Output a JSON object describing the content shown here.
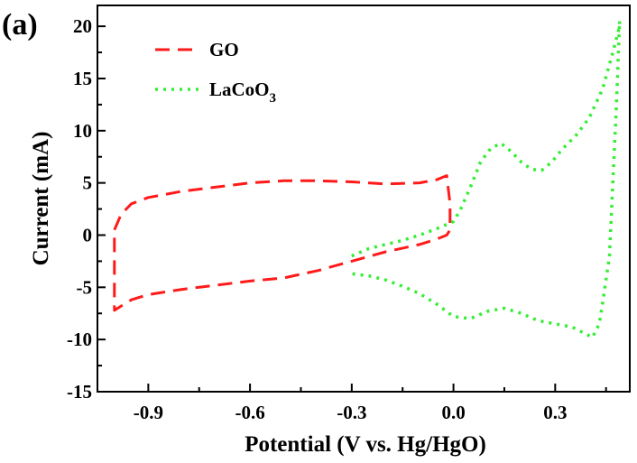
{
  "panel_label": "(a)",
  "chart_data": {
    "type": "line",
    "title": "",
    "xlabel": "Potential (V vs. Hg/HgO)",
    "ylabel": "Current (mA)",
    "xlim": [
      -1.05,
      0.52
    ],
    "ylim": [
      -15,
      22
    ],
    "xticks": [
      -0.9,
      -0.6,
      -0.3,
      0.0,
      0.3
    ],
    "xtick_labels": [
      "-0.9",
      "-0.6",
      "-0.3",
      "0.0",
      "0.3"
    ],
    "yticks": [
      -15,
      -10,
      -5,
      0,
      5,
      10,
      15,
      20
    ],
    "ytick_labels": [
      "-15",
      "-10",
      "-5",
      "0",
      "5",
      "10",
      "15",
      "20"
    ],
    "grid": false,
    "legend_position": "top-left",
    "series": [
      {
        "name": "GO",
        "name_base": "GO",
        "name_sub": "",
        "color": "#ff1a1a",
        "style": "dashed",
        "x": [
          -1.0,
          -0.98,
          -0.95,
          -0.9,
          -0.85,
          -0.8,
          -0.7,
          -0.6,
          -0.5,
          -0.4,
          -0.3,
          -0.2,
          -0.1,
          -0.05,
          -0.02,
          -0.01,
          -0.01,
          -0.02,
          -0.05,
          -0.1,
          -0.2,
          -0.3,
          -0.4,
          -0.5,
          -0.6,
          -0.7,
          -0.8,
          -0.9,
          -0.95,
          -0.98,
          -1.0,
          -1.0
        ],
        "y": [
          0.5,
          2.0,
          3.0,
          3.6,
          3.9,
          4.2,
          4.6,
          5.0,
          5.2,
          5.2,
          5.1,
          4.9,
          5.0,
          5.3,
          5.7,
          3.0,
          0.5,
          0.0,
          -0.4,
          -0.9,
          -1.6,
          -2.5,
          -3.4,
          -4.1,
          -4.4,
          -4.8,
          -5.2,
          -5.7,
          -6.2,
          -6.8,
          -7.2,
          0.5
        ]
      },
      {
        "name": "LaCoO3",
        "name_base": "LaCoO",
        "name_sub": "3",
        "color": "#33ee33",
        "style": "dotted",
        "x": [
          -0.3,
          -0.25,
          -0.2,
          -0.15,
          -0.1,
          -0.05,
          0.0,
          0.02,
          0.05,
          0.08,
          0.11,
          0.14,
          0.17,
          0.2,
          0.23,
          0.26,
          0.29,
          0.32,
          0.36,
          0.4,
          0.44,
          0.47,
          0.49,
          0.49,
          0.48,
          0.47,
          0.46,
          0.44,
          0.43,
          0.41,
          0.38,
          0.35,
          0.3,
          0.25,
          0.2,
          0.15,
          0.1,
          0.05,
          0.0,
          -0.05,
          -0.1,
          -0.15,
          -0.2,
          -0.25,
          -0.3
        ],
        "y": [
          -2.0,
          -1.3,
          -0.9,
          -0.5,
          0.0,
          0.6,
          1.3,
          2.4,
          4.6,
          7.0,
          8.3,
          8.8,
          8.0,
          7.0,
          6.3,
          6.2,
          7.0,
          8.2,
          9.5,
          11.2,
          14.0,
          17.5,
          20.0,
          20.5,
          12.0,
          5.0,
          -2.0,
          -6.5,
          -8.5,
          -9.8,
          -9.3,
          -8.8,
          -8.5,
          -8.2,
          -7.5,
          -7.0,
          -7.3,
          -8.0,
          -7.8,
          -6.6,
          -5.6,
          -4.9,
          -4.3,
          -3.9,
          -3.7
        ]
      }
    ]
  }
}
